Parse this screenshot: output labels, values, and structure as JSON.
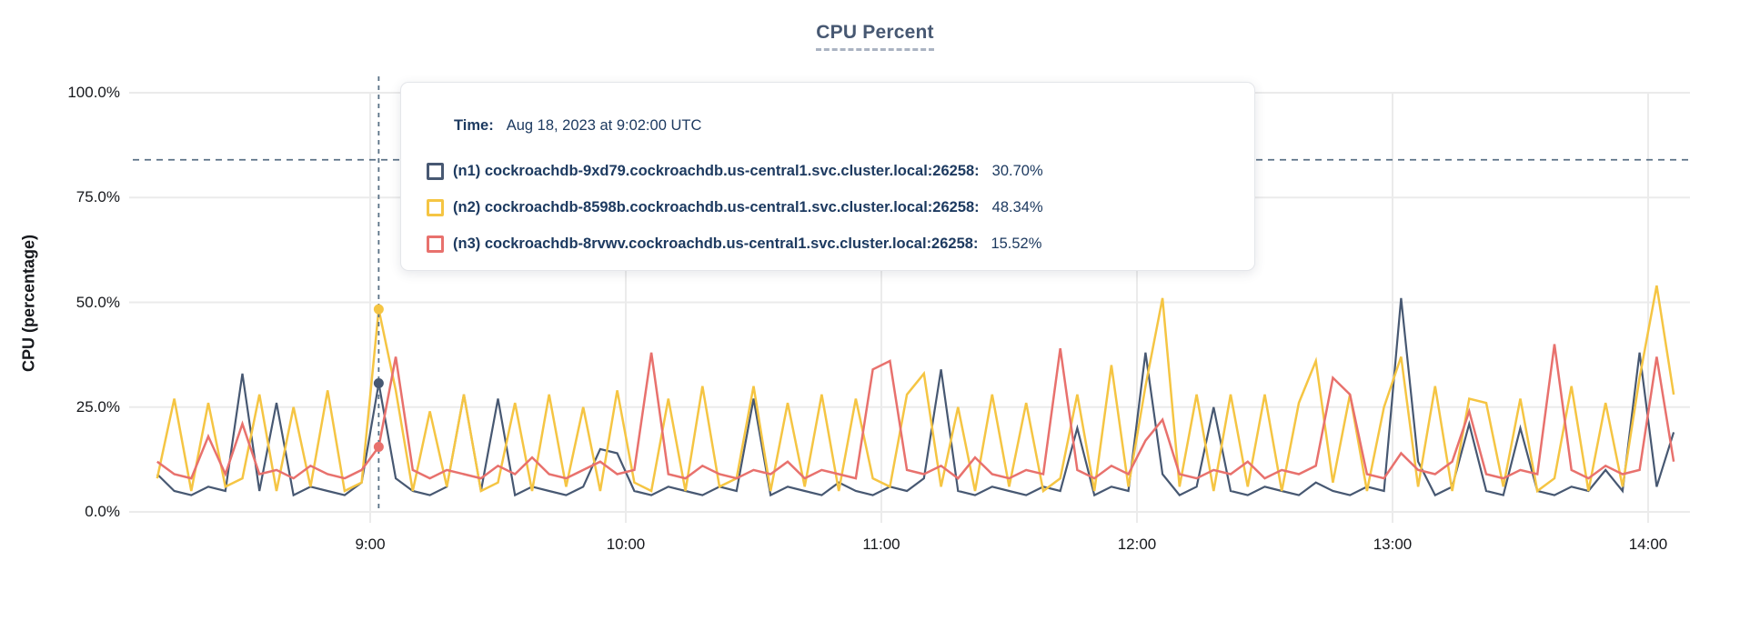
{
  "title": {
    "text": "CPU Percent"
  },
  "y_axis": {
    "label": "CPU (percentage)",
    "ticks": [
      {
        "label": "100.0%",
        "value": 100
      },
      {
        "label": "75.0%",
        "value": 75
      },
      {
        "label": "50.0%",
        "value": 50
      },
      {
        "label": "25.0%",
        "value": 25
      },
      {
        "label": "0.0%",
        "value": 0
      }
    ]
  },
  "x_axis": {
    "ticks": [
      {
        "label": "9:00",
        "minutes": 540
      },
      {
        "label": "10:00",
        "minutes": 600
      },
      {
        "label": "11:00",
        "minutes": 660
      },
      {
        "label": "12:00",
        "minutes": 720
      },
      {
        "label": "13:00",
        "minutes": 780
      },
      {
        "label": "14:00",
        "minutes": 840
      }
    ]
  },
  "tooltip": {
    "time_label": "Time:",
    "time_value": "Aug 18, 2023 at 9:02:00 UTC",
    "rows": [
      {
        "label": "(n1) cockroachdb-9xd79.cockroachdb.us-central1.svc.cluster.local:26258:",
        "value": "30.70%",
        "color": "#475872"
      },
      {
        "label": "(n2) cockroachdb-8598b.cockroachdb.us-central1.svc.cluster.local:26258:",
        "value": "48.34%",
        "color": "#f5c543"
      },
      {
        "label": "(n3) cockroachdb-8rvwv.cockroachdb.us-central1.svc.cluster.local:26258:",
        "value": "15.52%",
        "color": "#e8716d"
      }
    ]
  },
  "colors": {
    "n1": "#475872",
    "n2": "#f5c543",
    "n3": "#e8716d",
    "grid": "#ebebeb",
    "dashed": "#5a7186",
    "text_navy": "#1d3a60",
    "title_slate": "#475872"
  },
  "chart_data": {
    "type": "line",
    "title": "CPU Percent",
    "xlabel": "",
    "ylabel": "CPU (percentage)",
    "ylim": [
      0,
      100
    ],
    "grid": true,
    "x_start_minutes": 490,
    "x_step_minutes": 4,
    "x_tick_labels": [
      "9:00",
      "10:00",
      "11:00",
      "12:00",
      "13:00",
      "14:00"
    ],
    "threshold_percent": 84,
    "hover": {
      "time_minutes": 542,
      "time_text": "Aug 18, 2023 at 9:02:00 UTC",
      "values": [
        30.7,
        48.34,
        15.52
      ]
    },
    "series": [
      {
        "name": "(n1) cockroachdb-9xd79.cockroachdb.us-central1.svc.cluster.local:26258",
        "color": "#475872",
        "values": [
          9,
          5,
          4,
          6,
          5,
          33,
          5,
          26,
          4,
          6,
          5,
          4,
          7,
          30.7,
          8,
          5,
          4,
          6,
          28,
          5,
          27,
          4,
          6,
          5,
          4,
          6,
          15,
          14,
          5,
          4,
          6,
          5,
          4,
          6,
          5,
          27,
          4,
          6,
          5,
          4,
          7,
          5,
          4,
          6,
          5,
          8,
          34,
          5,
          4,
          6,
          5,
          4,
          6,
          5,
          20,
          4,
          6,
          5,
          38,
          9,
          4,
          6,
          25,
          5,
          4,
          6,
          5,
          4,
          7,
          5,
          4,
          6,
          5,
          51,
          12,
          4,
          6,
          21,
          5,
          4,
          20,
          5,
          4,
          6,
          5,
          10,
          5,
          38,
          6,
          19
        ]
      },
      {
        "name": "(n2) cockroachdb-8598b.cockroachdb.us-central1.svc.cluster.local:26258",
        "color": "#f5c543",
        "values": [
          8,
          27,
          5,
          26,
          6,
          8,
          28,
          5,
          25,
          6,
          29,
          5,
          7,
          48.34,
          29,
          5,
          24,
          6,
          28,
          5,
          7,
          26,
          5,
          28,
          6,
          25,
          5,
          29,
          7,
          5,
          27,
          5,
          30,
          6,
          8,
          30,
          5,
          26,
          6,
          28,
          5,
          27,
          8,
          6,
          28,
          33,
          6,
          25,
          5,
          28,
          6,
          26,
          5,
          8,
          28,
          5,
          35,
          6,
          30,
          51,
          6,
          28,
          5,
          28,
          6,
          28,
          5,
          26,
          36,
          7,
          28,
          5,
          25,
          37,
          6,
          30,
          5,
          27,
          26,
          6,
          27,
          5,
          8,
          30,
          5,
          26,
          6,
          32,
          54,
          28
        ]
      },
      {
        "name": "(n3) cockroachdb-8rvwv.cockroachdb.us-central1.svc.cluster.local:26258",
        "color": "#e8716d",
        "values": [
          12,
          9,
          8,
          18,
          9,
          21,
          9,
          10,
          8,
          11,
          9,
          8,
          10,
          15.52,
          37,
          10,
          8,
          10,
          9,
          8,
          11,
          9,
          13,
          9,
          8,
          10,
          12,
          9,
          10,
          38,
          9,
          8,
          11,
          9,
          8,
          10,
          9,
          12,
          8,
          10,
          9,
          8,
          34,
          36,
          10,
          9,
          11,
          8,
          13,
          9,
          8,
          10,
          9,
          39,
          10,
          8,
          11,
          9,
          17,
          22,
          9,
          8,
          10,
          9,
          12,
          8,
          10,
          9,
          11,
          32,
          28,
          9,
          8,
          14,
          10,
          9,
          12,
          24,
          9,
          8,
          10,
          9,
          40,
          10,
          8,
          11,
          9,
          10,
          37,
          12
        ]
      }
    ]
  }
}
